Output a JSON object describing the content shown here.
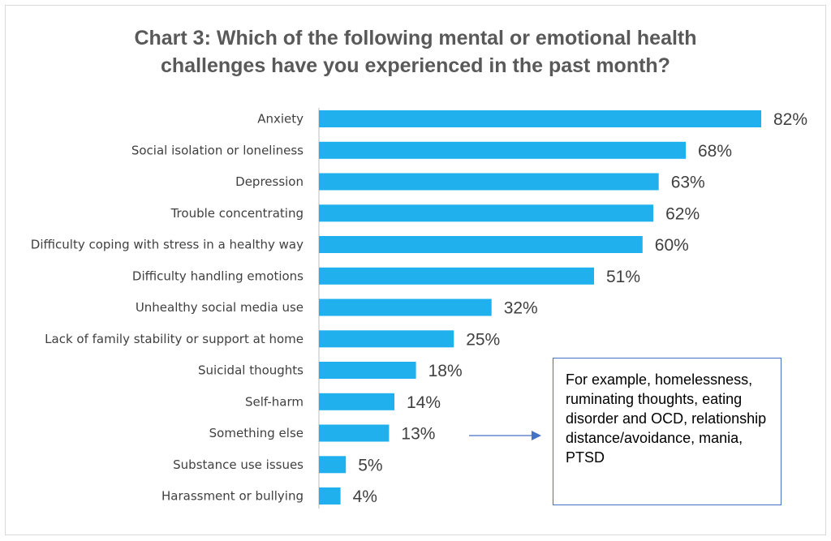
{
  "colors": {
    "bar": "#1fb0ed",
    "axis": "#bfbfbf",
    "arrow": "#4472c4",
    "title": "#595959"
  },
  "chart_data": {
    "type": "bar",
    "orientation": "horizontal",
    "title_lines": [
      "Chart 3: Which of the following mental or emotional health",
      "challenges have you experienced in the past month?"
    ],
    "categories": [
      "Anxiety",
      "Social isolation or loneliness",
      "Depression",
      "Trouble concentrating",
      "Difficulty coping with stress in a healthy way",
      "Difficulty handling emotions",
      "Unhealthy social media use",
      "Lack of family stability or support at home",
      "Suicidal thoughts",
      "Self-harm",
      "Something else",
      "Substance use issues",
      "Harassment or bullying"
    ],
    "values": [
      82,
      68,
      63,
      62,
      60,
      51,
      32,
      25,
      18,
      14,
      13,
      5,
      4
    ],
    "value_suffix": "%",
    "xlim": [
      0,
      82
    ],
    "grid": false,
    "legend": "none"
  },
  "annotation": {
    "target": "Something else",
    "text": "For example,  homelessness, ruminating thoughts, eating disorder and OCD, relationship distance/avoidance, mania, PTSD"
  }
}
